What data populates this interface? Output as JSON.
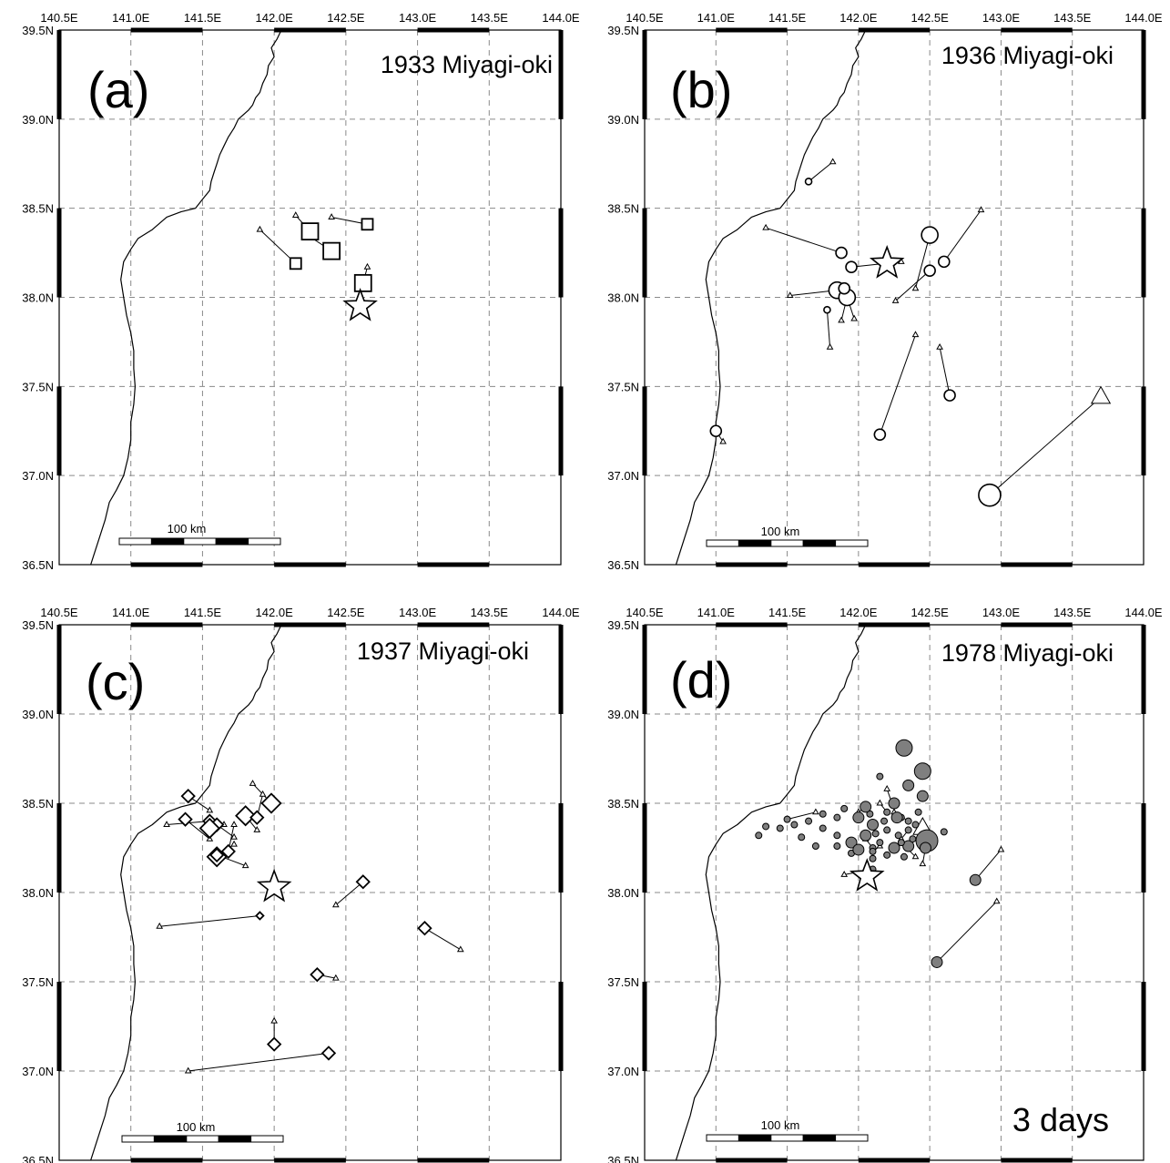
{
  "axes": {
    "lon_ticks": [
      "140.5E",
      "141.0E",
      "141.5E",
      "142.0E",
      "142.5E",
      "143.0E",
      "143.5E",
      "144.0E"
    ],
    "lat_ticks": [
      "39.5N",
      "39.0N",
      "38.5N",
      "38.0N",
      "37.5N",
      "37.0N",
      "36.5N"
    ],
    "lon_range": [
      140.5,
      144.0
    ],
    "lat_range": [
      36.5,
      39.5
    ],
    "grid": "dashed"
  },
  "scale_bar_label": "100 km",
  "colors": {
    "line": "#000000",
    "grid": "#8a8a8a",
    "fill_1978": "#7f7f7f",
    "background": "#ffffff"
  },
  "panels": [
    {
      "letter": "(a)",
      "title": "1933 Miyagi-oki",
      "corner_note": "",
      "marker": "square",
      "mainshock": [
        142.6,
        37.95
      ],
      "pairs": [
        {
          "from": [
            141.9,
            38.38
          ],
          "to": [
            142.15,
            38.19
          ],
          "size": "medium"
        },
        {
          "from": [
            142.15,
            38.46
          ],
          "to": [
            142.25,
            38.37
          ],
          "size": "large"
        },
        {
          "from": [
            142.25,
            38.34
          ],
          "to": [
            142.4,
            38.26
          ],
          "size": "large"
        },
        {
          "from": [
            142.4,
            38.45
          ],
          "to": [
            142.65,
            38.41
          ],
          "size": "medium"
        },
        {
          "from": [
            142.65,
            38.17
          ],
          "to": [
            142.62,
            38.08
          ],
          "size": "large"
        }
      ]
    },
    {
      "letter": "(b)",
      "title": "1936 Miyagi-oki",
      "corner_note": "",
      "marker": "circle",
      "mainshock": [
        142.2,
        38.19
      ],
      "pairs": [
        {
          "from": [
            141.82,
            38.76
          ],
          "to": [
            141.65,
            38.65
          ],
          "size": "small"
        },
        {
          "from": [
            141.35,
            38.39
          ],
          "to": [
            141.88,
            38.25
          ],
          "size": "medium"
        },
        {
          "from": [
            142.3,
            38.2
          ],
          "to": [
            141.95,
            38.17
          ],
          "size": "medium"
        },
        {
          "from": [
            141.52,
            38.01
          ],
          "to": [
            141.85,
            38.04
          ],
          "size": "large"
        },
        {
          "from": [
            141.8,
            37.72
          ],
          "to": [
            141.78,
            37.93
          ],
          "size": "small"
        },
        {
          "from": [
            141.88,
            37.87
          ],
          "to": [
            141.92,
            38.0
          ],
          "size": "large"
        },
        {
          "from": [
            141.97,
            37.88
          ],
          "to": [
            141.9,
            38.05
          ],
          "size": "medium"
        },
        {
          "from": [
            142.4,
            38.05
          ],
          "to": [
            142.5,
            38.35
          ],
          "size": "large"
        },
        {
          "from": [
            142.26,
            37.98
          ],
          "to": [
            142.5,
            38.15
          ],
          "size": "medium"
        },
        {
          "from": [
            142.86,
            38.49
          ],
          "to": [
            142.6,
            38.2
          ],
          "size": "medium"
        },
        {
          "from": [
            142.4,
            37.79
          ],
          "to": [
            142.15,
            37.23
          ],
          "size": "medium"
        },
        {
          "from": [
            142.57,
            37.72
          ],
          "to": [
            142.64,
            37.45
          ],
          "size": "medium"
        },
        {
          "from": [
            143.7,
            37.44
          ],
          "to": [
            142.92,
            36.89
          ],
          "size": "xlarge"
        },
        {
          "from": [
            141.05,
            37.19
          ],
          "to": [
            141.0,
            37.25
          ],
          "size": "medium"
        }
      ]
    },
    {
      "letter": "(c)",
      "title": "1937 Miyagi-oki",
      "corner_note": "",
      "marker": "diamond",
      "mainshock": [
        142.0,
        38.03
      ],
      "pairs": [
        {
          "from": [
            141.25,
            38.38
          ],
          "to": [
            141.55,
            38.4
          ],
          "size": "medium"
        },
        {
          "from": [
            141.55,
            38.46
          ],
          "to": [
            141.4,
            38.54
          ],
          "size": "medium"
        },
        {
          "from": [
            141.55,
            38.3
          ],
          "to": [
            141.38,
            38.41
          ],
          "size": "medium"
        },
        {
          "from": [
            141.72,
            38.31
          ],
          "to": [
            141.6,
            38.38
          ],
          "size": "medium"
        },
        {
          "from": [
            141.65,
            38.38
          ],
          "to": [
            141.55,
            38.36
          ],
          "size": "large"
        },
        {
          "from": [
            141.72,
            38.27
          ],
          "to": [
            141.6,
            38.2
          ],
          "size": "large"
        },
        {
          "from": [
            141.72,
            38.38
          ],
          "to": [
            141.68,
            38.23
          ],
          "size": "medium"
        },
        {
          "from": [
            141.88,
            38.35
          ],
          "to": [
            141.8,
            38.43
          ],
          "size": "large"
        },
        {
          "from": [
            141.85,
            38.61
          ],
          "to": [
            141.98,
            38.5
          ],
          "size": "large"
        },
        {
          "from": [
            141.92,
            38.55
          ],
          "to": [
            141.88,
            38.42
          ],
          "size": "medium"
        },
        {
          "from": [
            141.8,
            38.15
          ],
          "to": [
            141.6,
            38.21
          ],
          "size": "medium"
        },
        {
          "from": [
            142.43,
            37.93
          ],
          "to": [
            142.62,
            38.06
          ],
          "size": "medium"
        },
        {
          "from": [
            141.2,
            37.81
          ],
          "to": [
            141.9,
            37.87
          ],
          "size": "small"
        },
        {
          "from": [
            143.3,
            37.68
          ],
          "to": [
            143.05,
            37.8
          ],
          "size": "medium"
        },
        {
          "from": [
            142.43,
            37.52
          ],
          "to": [
            142.3,
            37.54
          ],
          "size": "medium"
        },
        {
          "from": [
            142.0,
            37.28
          ],
          "to": [
            142.0,
            37.15
          ],
          "size": "medium"
        },
        {
          "from": [
            141.4,
            37.0
          ],
          "to": [
            142.38,
            37.1
          ],
          "size": "medium"
        }
      ]
    },
    {
      "letter": "(d)",
      "title": "1978 Miyagi-oki",
      "corner_note": "3 days",
      "marker": "filled-circle",
      "mainshock": [
        142.06,
        38.09
      ],
      "pairs": [
        {
          "from": [
            143.0,
            38.24
          ],
          "to": [
            142.82,
            38.07
          ],
          "size": "medium"
        },
        {
          "from": [
            142.97,
            37.95
          ],
          "to": [
            142.55,
            37.61
          ],
          "size": "medium"
        },
        {
          "from": [
            142.2,
            38.58
          ],
          "to": [
            142.27,
            38.42
          ],
          "size": "medium"
        },
        {
          "from": [
            142.45,
            38.36
          ],
          "to": [
            142.48,
            38.29
          ],
          "size": "xlarge"
        },
        {
          "from": [
            142.0,
            38.45
          ],
          "to": [
            142.05,
            38.48
          ],
          "size": "medium"
        },
        {
          "from": [
            142.45,
            38.16
          ],
          "to": [
            142.47,
            38.25
          ],
          "size": "medium"
        },
        {
          "from": [
            141.9,
            38.1
          ],
          "to": [
            142.1,
            38.13
          ],
          "size": "small"
        },
        {
          "from": [
            142.15,
            38.5
          ],
          "to": [
            142.2,
            38.45
          ],
          "size": "small"
        },
        {
          "from": [
            142.25,
            38.45
          ],
          "to": [
            142.35,
            38.4
          ],
          "size": "small"
        },
        {
          "from": [
            142.05,
            38.3
          ],
          "to": [
            142.1,
            38.25
          ],
          "size": "small"
        },
        {
          "from": [
            142.3,
            38.3
          ],
          "to": [
            142.35,
            38.35
          ],
          "size": "small"
        },
        {
          "from": [
            141.7,
            38.45
          ],
          "to": [
            141.5,
            38.41
          ],
          "size": "small"
        },
        {
          "from": [
            142.15,
            38.26
          ],
          "to": [
            142.1,
            38.23
          ],
          "size": "small"
        },
        {
          "from": [
            142.4,
            38.2
          ],
          "to": [
            142.3,
            38.28
          ],
          "size": "small"
        }
      ],
      "events": [
        {
          "at": [
            142.32,
            38.81
          ],
          "size": "large"
        },
        {
          "at": [
            142.45,
            38.68
          ],
          "size": "large"
        },
        {
          "at": [
            142.15,
            38.65
          ],
          "size": "small"
        },
        {
          "at": [
            142.35,
            38.6
          ],
          "size": "medium"
        },
        {
          "at": [
            142.45,
            38.54
          ],
          "size": "medium"
        },
        {
          "at": [
            141.9,
            38.47
          ],
          "size": "small"
        },
        {
          "at": [
            142.0,
            38.42
          ],
          "size": "medium"
        },
        {
          "at": [
            142.1,
            38.38
          ],
          "size": "medium"
        },
        {
          "at": [
            142.2,
            38.35
          ],
          "size": "small"
        },
        {
          "at": [
            142.3,
            38.42
          ],
          "size": "small"
        },
        {
          "at": [
            142.4,
            38.38
          ],
          "size": "small"
        },
        {
          "at": [
            141.55,
            38.38
          ],
          "size": "small"
        },
        {
          "at": [
            141.45,
            38.36
          ],
          "size": "small"
        },
        {
          "at": [
            141.35,
            38.37
          ],
          "size": "small"
        },
        {
          "at": [
            141.3,
            38.32
          ],
          "size": "small"
        },
        {
          "at": [
            141.65,
            38.4
          ],
          "size": "small"
        },
        {
          "at": [
            141.75,
            38.36
          ],
          "size": "small"
        },
        {
          "at": [
            141.85,
            38.32
          ],
          "size": "small"
        },
        {
          "at": [
            141.95,
            38.28
          ],
          "size": "medium"
        },
        {
          "at": [
            142.05,
            38.32
          ],
          "size": "medium"
        },
        {
          "at": [
            142.15,
            38.28
          ],
          "size": "small"
        },
        {
          "at": [
            142.25,
            38.25
          ],
          "size": "medium"
        },
        {
          "at": [
            142.35,
            38.26
          ],
          "size": "medium"
        },
        {
          "at": [
            142.2,
            38.21
          ],
          "size": "small"
        },
        {
          "at": [
            142.1,
            38.19
          ],
          "size": "small"
        },
        {
          "at": [
            141.95,
            38.22
          ],
          "size": "small"
        },
        {
          "at": [
            141.85,
            38.26
          ],
          "size": "small"
        },
        {
          "at": [
            141.6,
            38.31
          ],
          "size": "small"
        },
        {
          "at": [
            141.7,
            38.26
          ],
          "size": "small"
        },
        {
          "at": [
            142.0,
            38.24
          ],
          "size": "medium"
        },
        {
          "at": [
            142.28,
            38.32
          ],
          "size": "small"
        },
        {
          "at": [
            142.38,
            38.3
          ],
          "size": "small"
        },
        {
          "at": [
            142.18,
            38.4
          ],
          "size": "small"
        },
        {
          "at": [
            142.42,
            38.45
          ],
          "size": "small"
        },
        {
          "at": [
            142.08,
            38.44
          ],
          "size": "small"
        },
        {
          "at": [
            142.25,
            38.5
          ],
          "size": "medium"
        },
        {
          "at": [
            142.6,
            38.34
          ],
          "size": "small"
        },
        {
          "at": [
            141.85,
            38.42
          ],
          "size": "small"
        },
        {
          "at": [
            141.75,
            38.44
          ],
          "size": "small"
        },
        {
          "at": [
            142.12,
            38.33
          ],
          "size": "small"
        },
        {
          "at": [
            142.32,
            38.2
          ],
          "size": "small"
        }
      ]
    }
  ]
}
